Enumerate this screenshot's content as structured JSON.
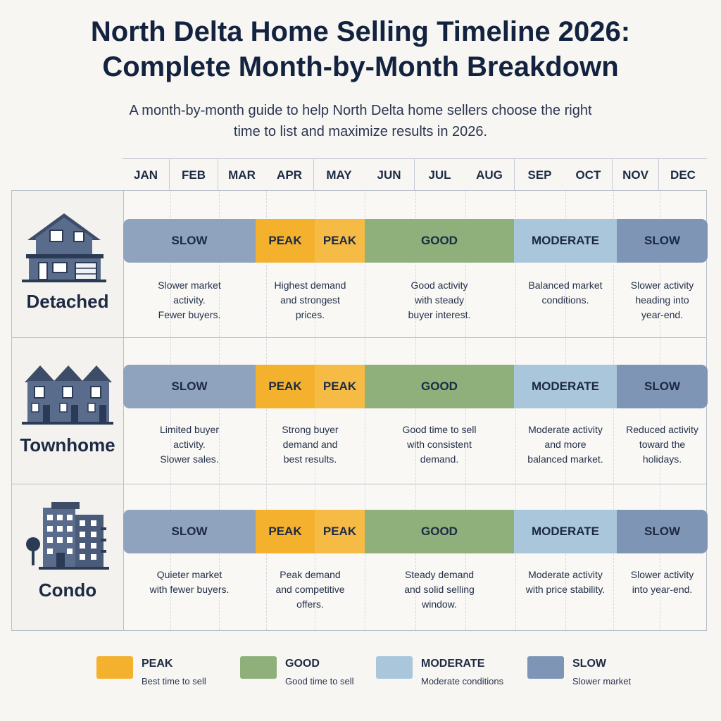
{
  "header": {
    "title_line1": "North Delta Home Selling Timeline 2026:",
    "title_line2": "Complete Month-by-Month Breakdown",
    "subtitle_line1": "A month-by-month guide to help North Delta home sellers choose the right",
    "subtitle_line2": "time to list and maximize results in 2026."
  },
  "months": [
    "JAN",
    "FEB",
    "MAR",
    "APR",
    "MAY",
    "JUN",
    "JUL",
    "AUG",
    "SEP",
    "OCT",
    "NOV",
    "DEC"
  ],
  "colors": {
    "slow": "#8fa2be",
    "slow_end": "#7f95b5",
    "peak": "#f3b12e",
    "peak2": "#f6bb45",
    "good": "#8fb07a",
    "moderate": "#a9c6da"
  },
  "rows": [
    {
      "label": "Detached",
      "icon": "detached-house-icon",
      "segments": [
        {
          "label": "SLOW",
          "kind": "slow"
        },
        {
          "label": "PEAK",
          "kind": "peak"
        },
        {
          "label": "PEAK",
          "kind": "peak2"
        },
        {
          "label": "GOOD",
          "kind": "good"
        },
        {
          "label": "MODERATE",
          "kind": "moderate"
        },
        {
          "label": "SLOW",
          "kind": "slow_end"
        }
      ],
      "descriptions": [
        [
          "Slower market",
          "activity.",
          "Fewer buyers."
        ],
        [
          "Highest demand",
          "and strongest",
          "prices."
        ],
        [
          "Good activity",
          "with steady",
          "buyer interest."
        ],
        [
          "Balanced market",
          "conditions."
        ],
        [
          "Slower activity",
          "heading into",
          "year-end."
        ]
      ]
    },
    {
      "label": "Townhome",
      "icon": "townhome-icon",
      "segments": [
        {
          "label": "SLOW",
          "kind": "slow"
        },
        {
          "label": "PEAK",
          "kind": "peak"
        },
        {
          "label": "PEAK",
          "kind": "peak2"
        },
        {
          "label": "GOOD",
          "kind": "good"
        },
        {
          "label": "MODERATE",
          "kind": "moderate"
        },
        {
          "label": "SLOW",
          "kind": "slow_end"
        }
      ],
      "descriptions": [
        [
          "Limited buyer",
          "activity.",
          "Slower sales."
        ],
        [
          "Strong buyer",
          "demand and",
          "best results."
        ],
        [
          "Good time to sell",
          "with consistent",
          "demand."
        ],
        [
          "Moderate activity",
          "and more",
          "balanced market."
        ],
        [
          "Reduced activity",
          "toward the",
          "holidays."
        ]
      ]
    },
    {
      "label": "Condo",
      "icon": "condo-building-icon",
      "segments": [
        {
          "label": "SLOW",
          "kind": "slow"
        },
        {
          "label": "PEAK",
          "kind": "peak"
        },
        {
          "label": "PEAK",
          "kind": "peak2"
        },
        {
          "label": "GOOD",
          "kind": "good"
        },
        {
          "label": "MODERATE",
          "kind": "moderate"
        },
        {
          "label": "SLOW",
          "kind": "slow_end"
        }
      ],
      "descriptions": [
        [
          "Quieter market",
          "with fewer buyers."
        ],
        [
          "Peak demand",
          "and competitive",
          "offers."
        ],
        [
          "Steady demand",
          "and solid selling",
          "window."
        ],
        [
          "Moderate activity",
          "with price stability."
        ],
        [
          "Slower activity",
          "into year-end."
        ]
      ]
    }
  ],
  "legend": [
    {
      "title": "PEAK",
      "sub": "Best time to sell",
      "kind": "peak"
    },
    {
      "title": "GOOD",
      "sub": "Good time to sell",
      "kind": "good"
    },
    {
      "title": "MODERATE",
      "sub": "Moderate conditions",
      "kind": "moderate"
    },
    {
      "title": "SLOW",
      "sub": "Slower market",
      "kind": "slow_end"
    }
  ]
}
